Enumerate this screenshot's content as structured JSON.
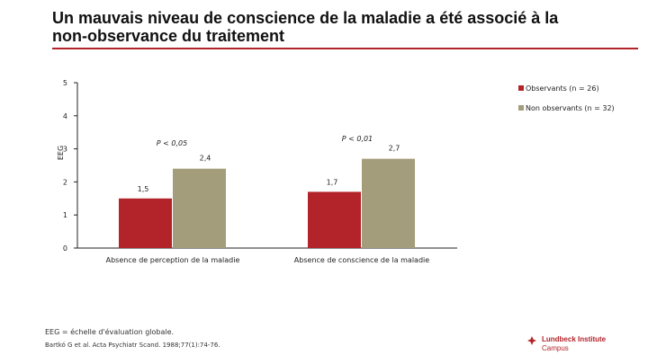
{
  "title_line1": "Un mauvais niveau de conscience de la maladie a été associé à la",
  "title_line2": "non-observance du traitement",
  "footnote1": "EEG = échelle d'évaluation globale.",
  "footnote2": "Bartkó G et al. Acta Psychiatr Scand. 1988;77(1):74-76.",
  "logo": {
    "line1": "Lundbeck Institute",
    "line2": "Campus"
  },
  "colors": {
    "accent": "#b3232a",
    "observants": "#b3232a",
    "non_observants": "#a49d7c"
  },
  "chart_data": {
    "type": "bar",
    "title": "",
    "xlabel": "",
    "ylabel": "EEG",
    "ylim": [
      0,
      5
    ],
    "yticks": [
      0,
      1,
      2,
      3,
      4,
      5
    ],
    "categories": [
      "Absence de perception de la maladie",
      "Absence de conscience de la maladie"
    ],
    "series": [
      {
        "name": "Observants (n = 26)",
        "color": "#b3232a",
        "values": [
          1.5,
          1.7
        ],
        "labels": [
          "1,5",
          "1,7"
        ]
      },
      {
        "name": "Non observants (n = 32)",
        "color": "#a49d7c",
        "values": [
          2.4,
          2.7
        ],
        "labels": [
          "2,4",
          "2,7"
        ]
      }
    ],
    "annotations": [
      "P < 0,05",
      "P < 0,01"
    ],
    "legend_position": "top-right",
    "grid": false
  }
}
